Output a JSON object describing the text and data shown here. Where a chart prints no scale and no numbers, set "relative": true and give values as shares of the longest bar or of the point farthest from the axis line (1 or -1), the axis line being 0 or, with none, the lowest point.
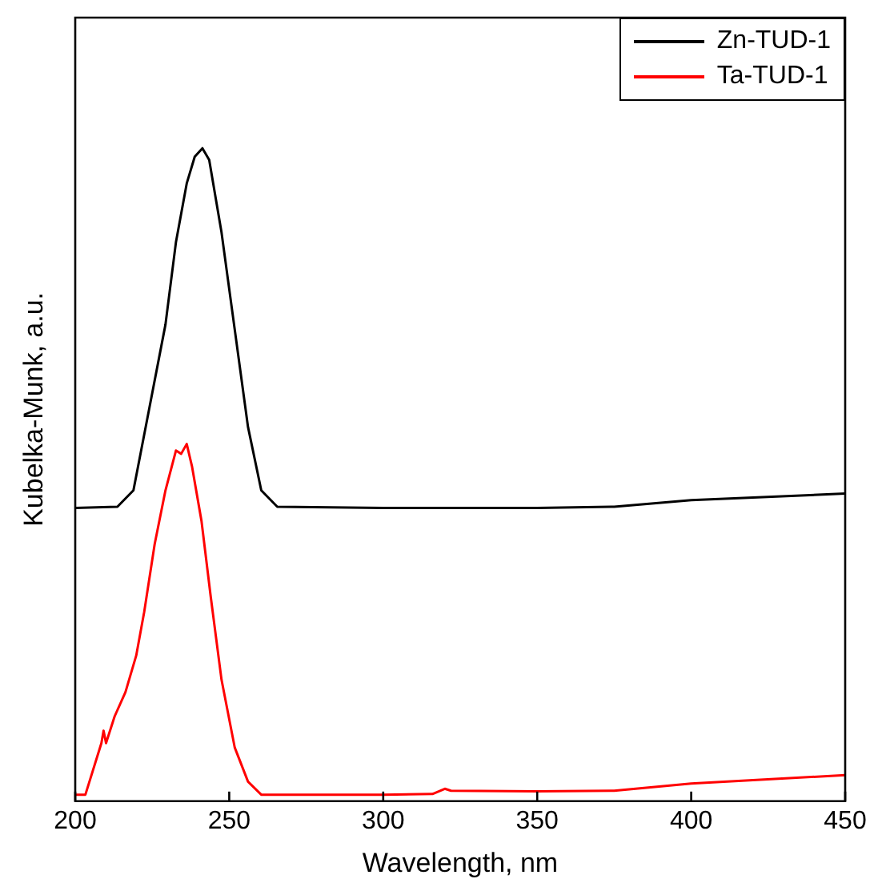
{
  "chart_data": {
    "type": "line",
    "xlabel": "Wavelength, nm",
    "ylabel": "Kubelka-Munk, a.u.",
    "relative": true,
    "xlim": [
      200,
      450
    ],
    "xticks": [
      200,
      250,
      300,
      350,
      400,
      450
    ],
    "legend": "top right",
    "grid": false,
    "marker": "none",
    "line_style": "solid",
    "series": [
      {
        "name": "Zn-TUD-1",
        "color": "#000000",
        "x": [
          200,
          213.7,
          218.9,
          224.1,
          229.3,
          232.7,
          236.2,
          238.8,
          241.3,
          243.5,
          247.5,
          251.8,
          256.1,
          260.4,
          265.6,
          300,
          350,
          375,
          400,
          450
        ],
        "values": [
          0.449,
          0.451,
          0.476,
          0.603,
          0.73,
          0.856,
          0.946,
          0.987,
          1,
          0.982,
          0.871,
          0.722,
          0.573,
          0.476,
          0.451,
          0.449,
          0.449,
          0.451,
          0.461,
          0.471
        ]
      },
      {
        "name": "Ta-TUD-1",
        "color": "#ff0000",
        "x": [
          200,
          203.3,
          208.5,
          209.2,
          210,
          212.8,
          216.3,
          219.8,
          222.4,
          225.8,
          229.3,
          232.7,
          234.4,
          236.2,
          237.9,
          241,
          244,
          247.5,
          251.8,
          256.1,
          260.4,
          300,
          316,
          320,
          322,
          350,
          375,
          400,
          450
        ],
        "values": [
          0.01,
          0.01,
          0.089,
          0.108,
          0.089,
          0.13,
          0.167,
          0.223,
          0.29,
          0.394,
          0.476,
          0.537,
          0.532,
          0.547,
          0.513,
          0.429,
          0.313,
          0.186,
          0.082,
          0.03,
          0.01,
          0.01,
          0.011,
          0.019,
          0.016,
          0.015,
          0.016,
          0.027,
          0.04
        ]
      }
    ]
  }
}
